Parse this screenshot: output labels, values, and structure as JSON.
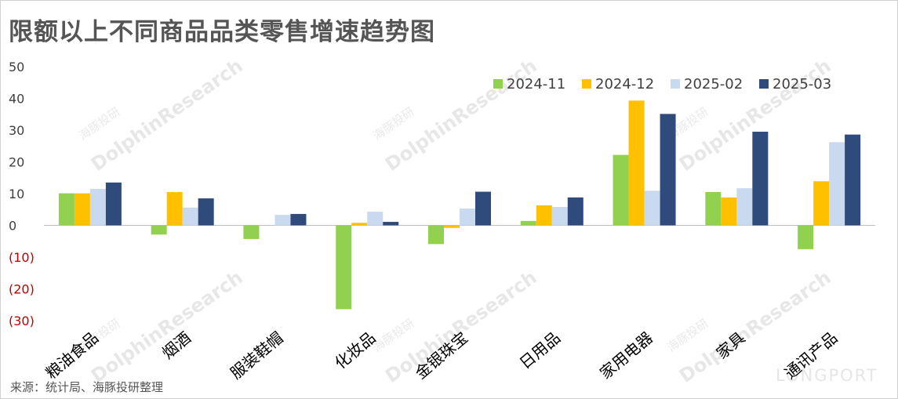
{
  "title": "限额以上不同商品品类零售增速趋势图",
  "source": "来源：统计局、海豚投研整理",
  "watermark": {
    "brand": "DolphinResearch",
    "cn": "海豚投研",
    "logo": "LONGPORT"
  },
  "chart_data": {
    "type": "bar",
    "categories": [
      "粮油食品",
      "烟酒",
      "服装鞋帽",
      "化妆品",
      "金银珠宝",
      "日用品",
      "家用电器",
      "家具",
      "通讯产品"
    ],
    "series": [
      {
        "name": "2024-11",
        "color": "#92d050",
        "values": [
          10.1,
          -2.9,
          -4.3,
          -26.4,
          -5.9,
          1.4,
          22.2,
          10.5,
          -7.5
        ]
      },
      {
        "name": "2024-12",
        "color": "#ffc000",
        "values": [
          10.1,
          10.5,
          0.0,
          0.8,
          -0.8,
          6.3,
          39.3,
          8.8,
          13.9
        ]
      },
      {
        "name": "2025-02",
        "color": "#c9daf0",
        "values": [
          11.5,
          5.6,
          3.3,
          4.3,
          5.3,
          5.8,
          10.9,
          11.7,
          26.2
        ]
      },
      {
        "name": "2025-03",
        "color": "#2f4b7c",
        "values": [
          13.5,
          8.5,
          3.6,
          1.1,
          10.6,
          8.8,
          35.1,
          29.5,
          28.6
        ]
      }
    ],
    "ylim": [
      -30,
      50
    ],
    "yticks": [
      50,
      40,
      30,
      20,
      10,
      0,
      -10,
      -20,
      -30
    ],
    "ytick_labels": [
      "50",
      "40",
      "30",
      "20",
      "10",
      "0",
      "(10)",
      "(20)",
      "(30)"
    ],
    "negative_tick_color": "#c00000",
    "legend_position": "top-right",
    "grid": false
  }
}
